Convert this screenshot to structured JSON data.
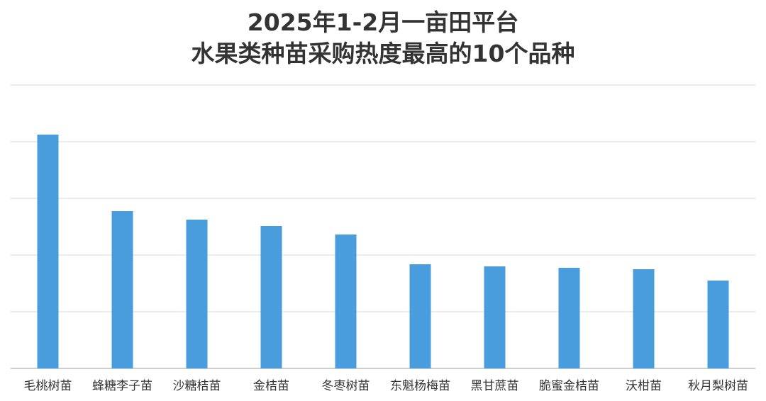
{
  "chart_data": {
    "type": "bar",
    "title": [
      "2025年1-2月一亩田平台",
      "水果类种苗采购热度最高的10个品种"
    ],
    "categories": [
      "毛桃树苗",
      "蜂糖李子苗",
      "沙糖桔苗",
      "金桔苗",
      "冬枣树苗",
      "东魁杨梅苗",
      "黑甘蔗苗",
      "脆蜜金桔苗",
      "沃柑苗",
      "秋月梨树苗"
    ],
    "values": [
      330,
      222,
      210,
      201,
      189,
      147,
      144,
      142,
      140,
      124
    ],
    "ylim": [
      0,
      400
    ],
    "yticks": [
      0,
      80,
      160,
      240,
      320,
      400
    ],
    "grid": true,
    "legend": "none",
    "xlabel": "",
    "ylabel": "",
    "colors": {
      "bar": "#4A9DDC",
      "grid": "#D9D9D9",
      "axis": "#BFBFBF",
      "text": "#333333"
    }
  }
}
